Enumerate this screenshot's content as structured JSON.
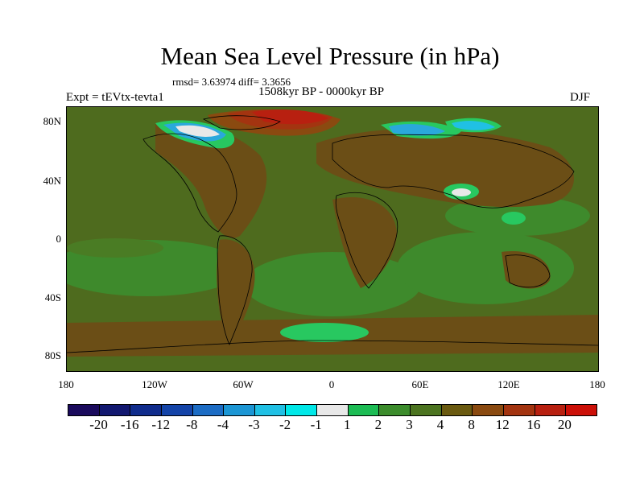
{
  "title": "Mean Sea Level Pressure (in hPa)",
  "stats_text": "rmsd= 3.63974 diff= 3.3656",
  "period_text": "1508kyr BP - 0000kyr BP",
  "experiment_text": "Expt = tEVtx-tevta1",
  "season_text": "DJF",
  "lat_ticks": [
    "80N",
    "40N",
    "0",
    "40S",
    "80S"
  ],
  "lon_ticks": [
    "180",
    "120W",
    "60W",
    "0",
    "60E",
    "120E",
    "180"
  ],
  "colorbar": {
    "labels": [
      "-20",
      "-16",
      "-12",
      "-8",
      "-4",
      "-3",
      "-2",
      "-1",
      "1",
      "2",
      "3",
      "4",
      "8",
      "12",
      "16",
      "20"
    ],
    "colors": [
      "#1a0a5c",
      "#121870",
      "#102c8c",
      "#1444a8",
      "#1c6cc4",
      "#1c96d4",
      "#20c0e4",
      "#00e8e8",
      "#e8e8e8",
      "#1cbc54",
      "#3c8c2c",
      "#4c7420",
      "#6a5a10",
      "#8a4a10",
      "#a33410",
      "#b82010",
      "#cc1008"
    ]
  },
  "colors": {
    "background_field": "#4e6b1e",
    "ocean_light": "#3e8a2c",
    "land_brown": "#6b4e16",
    "positive_high": "#b42a0c",
    "negative_low": "#2aa8dc",
    "bright_green": "#28c860"
  }
}
